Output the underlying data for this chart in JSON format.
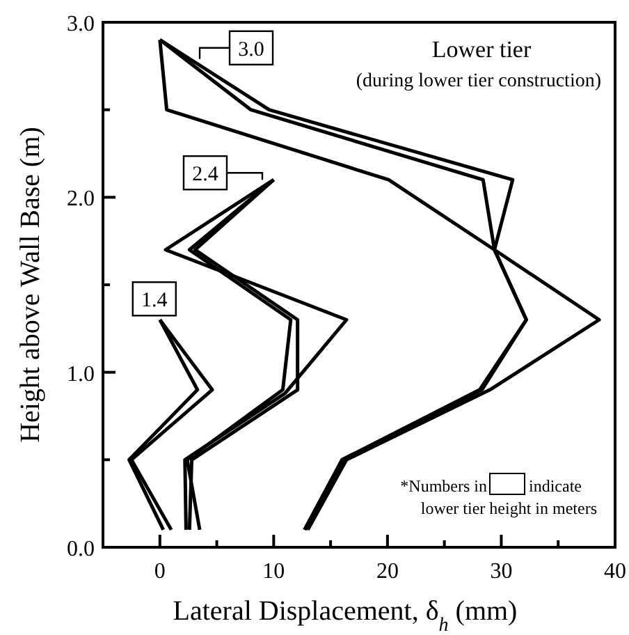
{
  "chart_data": {
    "type": "line",
    "title": "Lower tier",
    "subtitle": "(during lower tier construction)",
    "xlabel": "Lateral Displacement, δ$_{h}$ (mm)",
    "ylabel": "Height above Wall Base (m)",
    "xlim": [
      -5,
      40
    ],
    "xticks": [
      0,
      {
        "value": 5,
        "label": null
      },
      10,
      {
        "value": 15,
        "label": null
      },
      20,
      {
        "value": 25,
        "label": null
      },
      30,
      {
        "value": 35,
        "label": null
      },
      40
    ],
    "ylim": [
      0,
      3
    ],
    "yticks": [
      {
        "value": 0,
        "label": "0.0"
      },
      {
        "value": 0.5,
        "label": null
      },
      {
        "value": 1,
        "label": "1.0"
      },
      {
        "value": 1.5,
        "label": null
      },
      {
        "value": 2,
        "label": "2.0"
      },
      {
        "value": 2.5,
        "label": null
      },
      {
        "value": 3,
        "label": "3.0"
      }
    ],
    "marker": "none",
    "line_style": "solid",
    "series": [
      {
        "color": "#000000",
        "x": [
          0,
          4.6,
          -2.5,
          1
        ],
        "values": [
          1.3,
          0.9,
          0.5,
          0.1
        ]
      },
      {
        "color": "#000000",
        "x": [
          0,
          3.3,
          -2.7,
          0.3
        ],
        "values": [
          1.3,
          0.9,
          0.5,
          0.1
        ]
      },
      {
        "color": "#000000",
        "x": [
          10,
          0.5,
          16.4,
          11,
          2.2,
          2.3
        ],
        "values": [
          2.1,
          1.7,
          1.3,
          0.88,
          0.5,
          0.1
        ]
      },
      {
        "color": "#000000",
        "x": [
          10,
          2.6,
          11.5,
          10.8,
          2.4,
          3.5
        ],
        "values": [
          2.1,
          1.7,
          1.3,
          0.9,
          0.5,
          0.1
        ]
      },
      {
        "color": "#000000",
        "x": [
          10,
          3.1,
          12.1,
          12.1,
          2.8,
          2.6
        ],
        "values": [
          2.1,
          1.7,
          1.3,
          0.9,
          0.5,
          0.1
        ]
      },
      {
        "color": "#000000",
        "x": [
          0,
          8,
          28.4,
          29.4,
          32.2,
          28.1,
          16,
          12.7
        ],
        "values": [
          2.9,
          2.5,
          2.1,
          1.7,
          1.3,
          0.9,
          0.5,
          0.1
        ]
      },
      {
        "color": "#000000",
        "x": [
          0,
          9.6,
          31,
          29.4,
          38.6,
          29,
          16.4,
          13
        ],
        "values": [
          2.9,
          2.5,
          2.1,
          1.7,
          1.3,
          0.9,
          0.5,
          0.1
        ]
      },
      {
        "color": "#000000",
        "x": [
          0,
          0.6,
          20.1,
          29.4,
          32.2,
          28.3,
          16.2,
          12.8
        ],
        "values": [
          2.9,
          2.5,
          2.1,
          1.7,
          1.3,
          0.9,
          0.5,
          0.1
        ]
      }
    ],
    "annotations": [
      {
        "text": "3.0",
        "x": 3.5,
        "y": 2.79
      },
      {
        "text": "2.4",
        "x": 9,
        "y": 2.1
      },
      {
        "text": "1.4",
        "x": 0,
        "y": 1.3
      },
      "*Numbers in",
      "indicate",
      "lower tier height in meters"
    ]
  }
}
